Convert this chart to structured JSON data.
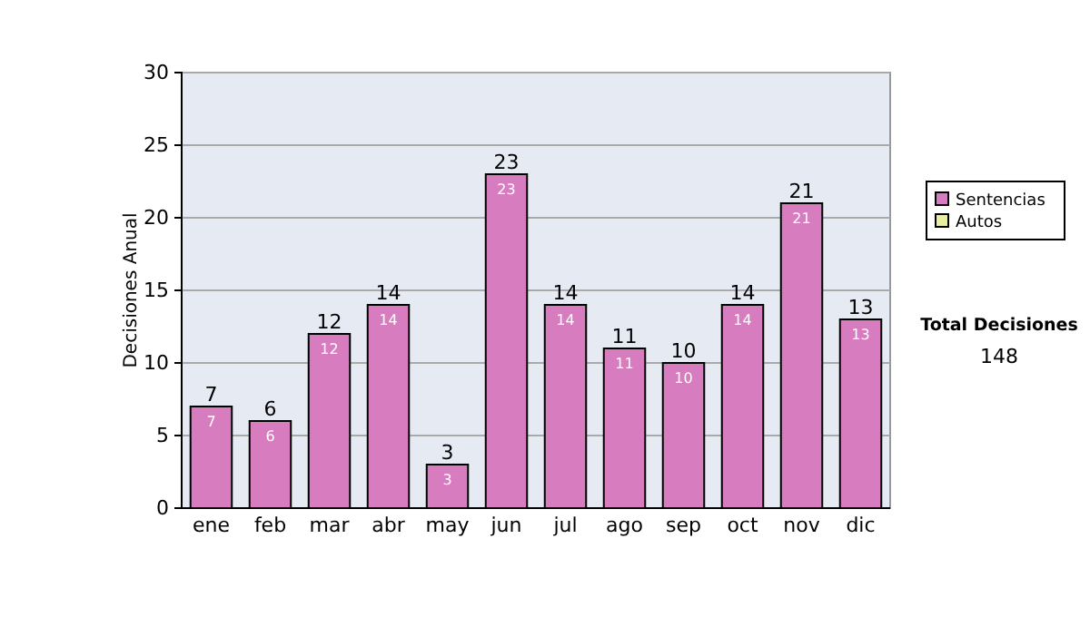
{
  "chart_data": {
    "type": "bar",
    "ylabel": "Decisiones Anual",
    "categories": [
      "ene",
      "feb",
      "mar",
      "abr",
      "may",
      "jun",
      "jul",
      "ago",
      "sep",
      "oct",
      "nov",
      "dic"
    ],
    "series": [
      {
        "name": "Sentencias",
        "color": "#d87cc0",
        "values": [
          7,
          6,
          12,
          14,
          3,
          23,
          14,
          11,
          10,
          14,
          21,
          13
        ],
        "value_labels": [
          "7",
          "6",
          "12",
          "14",
          "3",
          "23",
          "14",
          "11",
          "10",
          "14",
          "21",
          "13"
        ]
      },
      {
        "name": "Autos",
        "color": "#e8f0a0",
        "values": [
          0,
          0,
          0,
          0,
          0,
          0,
          0,
          0,
          0,
          0,
          0,
          0
        ]
      }
    ],
    "stacked": true,
    "totals": [
      "7",
      "6",
      "12",
      "14",
      "3",
      "23",
      "14",
      "11",
      "10",
      "14",
      "21",
      "13"
    ],
    "ylim": [
      0,
      30
    ],
    "yticks": [
      0,
      5,
      10,
      15,
      20,
      25,
      30
    ],
    "grid": "y",
    "legend": "right",
    "annotations": [
      "Total Decisiones",
      "148"
    ]
  }
}
